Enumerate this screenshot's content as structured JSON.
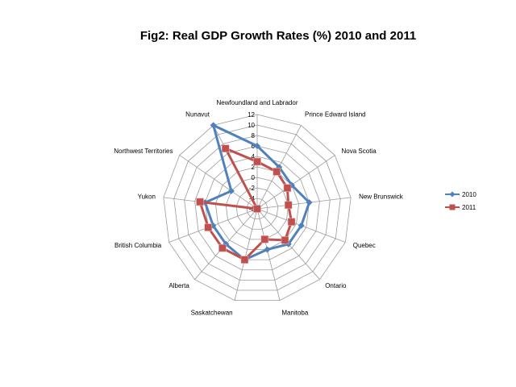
{
  "page": {
    "title": "Fig2: Real GDP Growth Rates (%) 2010 and 2011"
  },
  "chart_data": {
    "type": "radar",
    "title": "Fig2: Real GDP Growth Rates (%) 2010 and 2011",
    "categories": [
      "Newfoundland and Labrador",
      "Prince Edward Island",
      "Nova Scotia",
      "New Brunswick",
      "Quebec",
      "Ontario",
      "Manitoba",
      "Saskatchewan",
      "Alberta",
      "British Columbia",
      "Yukon",
      "Northwest Territories",
      "Nunavut"
    ],
    "series": [
      {
        "name": "2010",
        "color": "#4F81BD",
        "marker": "diamond",
        "values": [
          6,
          3,
          2,
          4,
          3,
          3,
          2,
          4,
          3,
          3,
          4,
          0,
          12
        ]
      },
      {
        "name": "2011",
        "color": "#C0504D",
        "marker": "square",
        "values": [
          3,
          2,
          1,
          0,
          1,
          2,
          0,
          4,
          4,
          4,
          5,
          -6,
          7
        ]
      }
    ],
    "rlim": [
      -6,
      12
    ],
    "ticks": [
      "-6",
      "-4",
      "-2",
      "0",
      "2",
      "4",
      "6",
      "8",
      "10",
      "12"
    ],
    "grid": true,
    "legend_position": "right"
  }
}
